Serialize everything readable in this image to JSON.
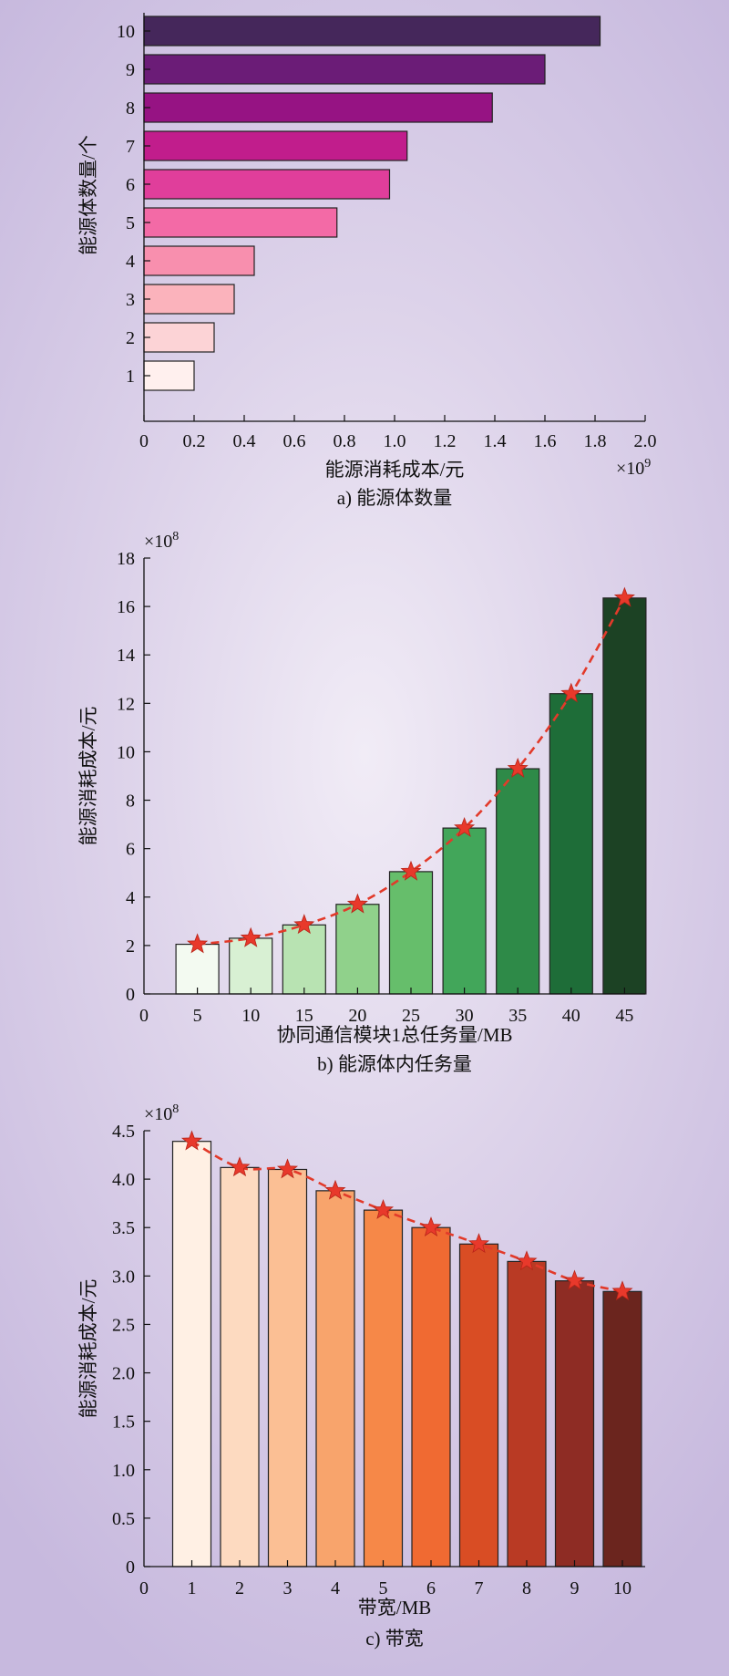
{
  "chart_data": [
    {
      "type": "bar",
      "orientation": "horizontal",
      "categories": [
        "1",
        "2",
        "3",
        "4",
        "5",
        "6",
        "7",
        "8",
        "9",
        "10"
      ],
      "values": [
        0.2,
        0.28,
        0.36,
        0.44,
        0.77,
        0.98,
        1.05,
        1.39,
        1.6,
        1.82
      ],
      "xlabel": "能源消耗成本/元",
      "ylabel": "能源体数量/个",
      "xlim": [
        0,
        2.0
      ],
      "xticks": [
        "0",
        "0.2",
        "0.4",
        "0.6",
        "0.8",
        "1.0",
        "1.2",
        "1.4",
        "1.6",
        "1.8",
        "2.0"
      ],
      "exponent_base": "×10",
      "exponent_power": "9",
      "caption": "a) 能源体数量",
      "colors": [
        "#fff0ee",
        "#fcd3d6",
        "#fbb3bc",
        "#f88fae",
        "#f36aa6",
        "#e03e9b",
        "#c11d8c",
        "#961383",
        "#6b1c77",
        "#45275b"
      ]
    },
    {
      "type": "bar",
      "categories": [
        "5",
        "10",
        "15",
        "20",
        "25",
        "30",
        "35",
        "40",
        "45"
      ],
      "values": [
        2.05,
        2.3,
        2.85,
        3.7,
        5.05,
        6.85,
        9.3,
        12.4,
        16.35
      ],
      "trend_values": [
        2.05,
        2.3,
        2.85,
        3.7,
        5.05,
        6.85,
        9.3,
        12.4,
        16.35
      ],
      "xlabel": "协同通信模块1总任务量/MB",
      "ylabel": "能源消耗成本/元",
      "ylim": [
        0,
        18
      ],
      "yticks": [
        "0",
        "2",
        "4",
        "6",
        "8",
        "10",
        "12",
        "14",
        "16",
        "18"
      ],
      "x_zero_label": "0",
      "exponent_base": "×10",
      "exponent_power": "8",
      "caption": "b) 能源体内任务量",
      "colors": [
        "#f3faf1",
        "#d8f0d3",
        "#b8e3b2",
        "#90d18b",
        "#66be6b",
        "#42a65a",
        "#2e8a48",
        "#1e6d38",
        "#1c4224"
      ]
    },
    {
      "type": "bar",
      "categories": [
        "1",
        "2",
        "3",
        "4",
        "5",
        "6",
        "7",
        "8",
        "9",
        "10"
      ],
      "values": [
        4.39,
        4.12,
        4.1,
        3.88,
        3.68,
        3.5,
        3.33,
        3.15,
        2.95,
        2.84
      ],
      "trend_values": [
        4.39,
        4.12,
        4.1,
        3.88,
        3.68,
        3.5,
        3.33,
        3.15,
        2.95,
        2.84
      ],
      "xlabel": "带宽/MB",
      "ylabel": "能源消耗成本/元",
      "ylim": [
        0,
        4.5
      ],
      "yticks": [
        "0",
        "0.5",
        "1.0",
        "1.5",
        "2.0",
        "2.5",
        "3.0",
        "3.5",
        "4.0",
        "4.5"
      ],
      "x_zero_label": "0",
      "exponent_base": "×10",
      "exponent_power": "8",
      "caption": "c) 带宽",
      "colors": [
        "#fff0e4",
        "#fddac0",
        "#fbbf94",
        "#f8a46c",
        "#f68848",
        "#f06a32",
        "#d94d24",
        "#b93a24",
        "#8e2c24",
        "#6b251e"
      ]
    }
  ]
}
